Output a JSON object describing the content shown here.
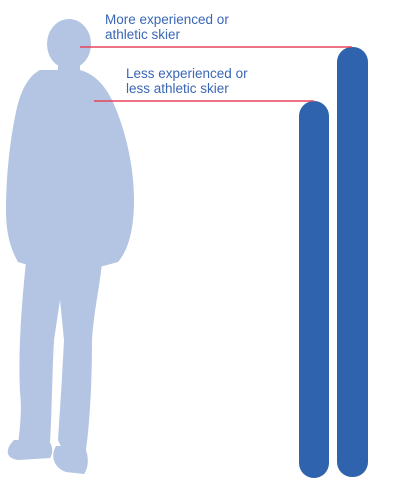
{
  "labels": {
    "more_experienced": {
      "line1": "More experienced or",
      "line2": "athletic skier"
    },
    "less_experienced": {
      "line1": "Less experienced or",
      "line2": "less athletic skier"
    }
  },
  "colors": {
    "label_text": "#3a66b5",
    "guide_line": "#e8435a",
    "ski": "#2f63ad",
    "skier_silhouette": "#b3c5e2",
    "background": "#ffffff"
  },
  "icons": {
    "skier": "person-silhouette-icon",
    "short_ski": "ski-icon",
    "long_ski": "ski-icon"
  }
}
